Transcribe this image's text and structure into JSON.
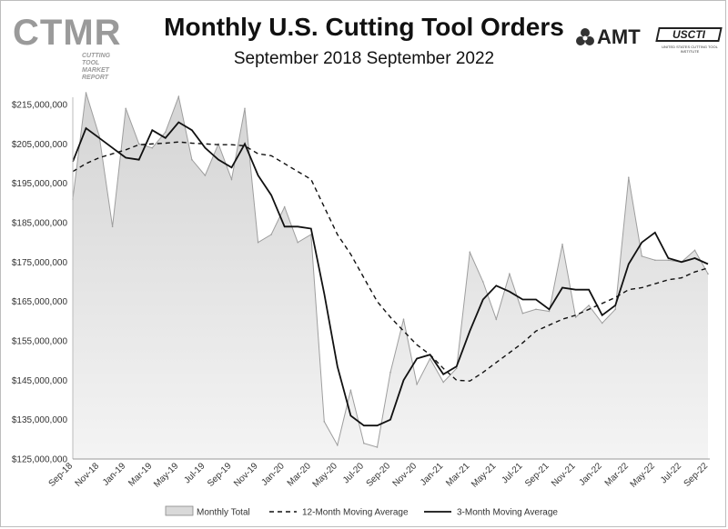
{
  "header": {
    "title": "Monthly U.S. Cutting Tool Orders",
    "subtitle": "September 2018 September 2022"
  },
  "logos": {
    "ctmr": "CTMR",
    "ctmr_sub": "CUTTING TOOL MARKET REPORT",
    "amt": "AMT",
    "uscti": "USCTI",
    "uscti_sub": "UNITED STATES CUTTING TOOL INSTITUTE"
  },
  "chart_data": {
    "type": "area",
    "title": "Monthly U.S. Cutting Tool Orders",
    "subtitle": "September 2018 September 2022",
    "ylim": [
      125000000,
      215000000
    ],
    "yticks": [
      125000000,
      135000000,
      145000000,
      155000000,
      165000000,
      175000000,
      185000000,
      195000000,
      205000000,
      215000000
    ],
    "ytick_labels": [
      "$125,000,000",
      "$135,000,000",
      "$145,000,000",
      "$155,000,000",
      "$165,000,000",
      "$175,000,000",
      "$185,000,000",
      "$195,000,000",
      "$205,000,000",
      "$215,000,000"
    ],
    "x_labels": [
      "Sep-18",
      "Nov-18",
      "Jan-19",
      "Mar-19",
      "May-19",
      "Jul-19",
      "Sep-19",
      "Nov-19",
      "Jan-20",
      "Mar-20",
      "May-20",
      "Jul-20",
      "Sep-20",
      "Nov-20",
      "Jan-21",
      "Mar-21",
      "May-21",
      "Jul-21",
      "Sep-21",
      "Nov-21",
      "Jan-22",
      "Mar-22",
      "May-22",
      "Jul-22",
      "Sep-22"
    ],
    "months": [
      "Sep-18",
      "Oct-18",
      "Nov-18",
      "Dec-18",
      "Jan-19",
      "Feb-19",
      "Mar-19",
      "Apr-19",
      "May-19",
      "Jun-19",
      "Jul-19",
      "Aug-19",
      "Sep-19",
      "Oct-19",
      "Nov-19",
      "Dec-19",
      "Jan-20",
      "Feb-20",
      "Mar-20",
      "Apr-20",
      "May-20",
      "Jun-20",
      "Jul-20",
      "Aug-20",
      "Sep-20",
      "Oct-20",
      "Nov-20",
      "Dec-20",
      "Jan-21",
      "Feb-21",
      "Mar-21",
      "Apr-21",
      "May-21",
      "Jun-21",
      "Jul-21",
      "Aug-21",
      "Sep-21",
      "Oct-21",
      "Nov-21",
      "Dec-21",
      "Jan-22",
      "Feb-22",
      "Mar-22",
      "Apr-22",
      "May-22",
      "Jun-22",
      "Jul-22",
      "Aug-22",
      "Sep-22"
    ],
    "series": [
      {
        "name": "Monthly Total",
        "style": "area",
        "color": "#d9d9d9",
        "values": [
          191000000,
          218000000,
          207000000,
          184000000,
          214000000,
          205000000,
          204000000,
          208000000,
          217000000,
          201000000,
          197000000,
          205000000,
          196000000,
          214000000,
          180000000,
          182000000,
          189000000,
          180000000,
          182000000,
          134500000,
          128500000,
          142500000,
          129000000,
          128000000,
          147000000,
          160500000,
          144000000,
          150500000,
          144500000,
          148000000,
          177500000,
          170000000,
          160500000,
          172000000,
          162000000,
          163000000,
          162500000,
          179500000,
          161000000,
          164000000,
          159500000,
          163000000,
          196500000,
          176500000,
          175500000,
          175500000,
          175000000,
          178000000,
          172000000
        ]
      },
      {
        "name": "12-Month Moving Average",
        "style": "dashed",
        "color": "#111111",
        "values": [
          198000000,
          200000000,
          201500000,
          202500000,
          203500000,
          204800000,
          205000000,
          205200000,
          205500000,
          205200000,
          205000000,
          204800000,
          204800000,
          204500000,
          202500000,
          202000000,
          200000000,
          198000000,
          196000000,
          189000000,
          182000000,
          177000000,
          171000000,
          165000000,
          161000000,
          157500000,
          154000000,
          151500000,
          148000000,
          145000000,
          144800000,
          147000000,
          149500000,
          152000000,
          154500000,
          157500000,
          159000000,
          160500000,
          161500000,
          163000000,
          164500000,
          166000000,
          168000000,
          168500000,
          169500000,
          170500000,
          171000000,
          172500000,
          173500000
        ]
      },
      {
        "name": "3-Month Moving Average",
        "style": "solid",
        "color": "#111111",
        "values": [
          200500000,
          209000000,
          206500000,
          204000000,
          201500000,
          201000000,
          208500000,
          206500000,
          210500000,
          208500000,
          204000000,
          201000000,
          199000000,
          205000000,
          197000000,
          192000000,
          184000000,
          184000000,
          183500000,
          167000000,
          148500000,
          136000000,
          133500000,
          133500000,
          135000000,
          145000000,
          150500000,
          151500000,
          146500000,
          148500000,
          157500000,
          165500000,
          169000000,
          167500000,
          165500000,
          165500000,
          163000000,
          168500000,
          168000000,
          168000000,
          161500000,
          164000000,
          174500000,
          180000000,
          182500000,
          176000000,
          175000000,
          176000000,
          174500000
        ]
      }
    ],
    "legend": {
      "position": "bottom",
      "entries": [
        "Monthly Total",
        "12-Month Moving Average",
        "3-Month Moving Average"
      ]
    },
    "grid": false
  }
}
